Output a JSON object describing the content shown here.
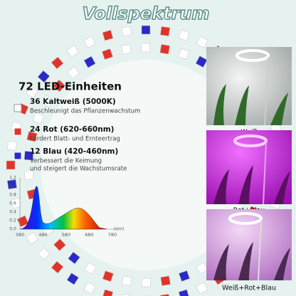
{
  "title": "Vollspektrum",
  "heading": "72 LED-Einheiten",
  "features": [
    {
      "name": "36 Kaltweiß (5000K)",
      "lines": [
        "Beschleunigt das Pflanzenwachstum"
      ]
    },
    {
      "name": "24 Rot (620-660nm)",
      "lines": [
        "Fördert Blatt- und Ernteertrag"
      ]
    },
    {
      "name": "12 Blau (420-460nm)",
      "lines": [
        "Verbessert die Keimung",
        "und steigert die Wachstumsrate"
      ]
    }
  ],
  "spectrum": {
    "yticks": [
      "1.2",
      "1.0",
      "0.8",
      "0.6",
      "0.4",
      "0.2",
      "0.0"
    ],
    "xticks": [
      "380",
      "480",
      "580",
      "680",
      "780"
    ],
    "unit": "(nm)"
  },
  "photos": [
    {
      "label": "Weiß"
    },
    {
      "label": "Rot+Blau"
    },
    {
      "label": "Weiß+Rot+Blau"
    }
  ]
}
